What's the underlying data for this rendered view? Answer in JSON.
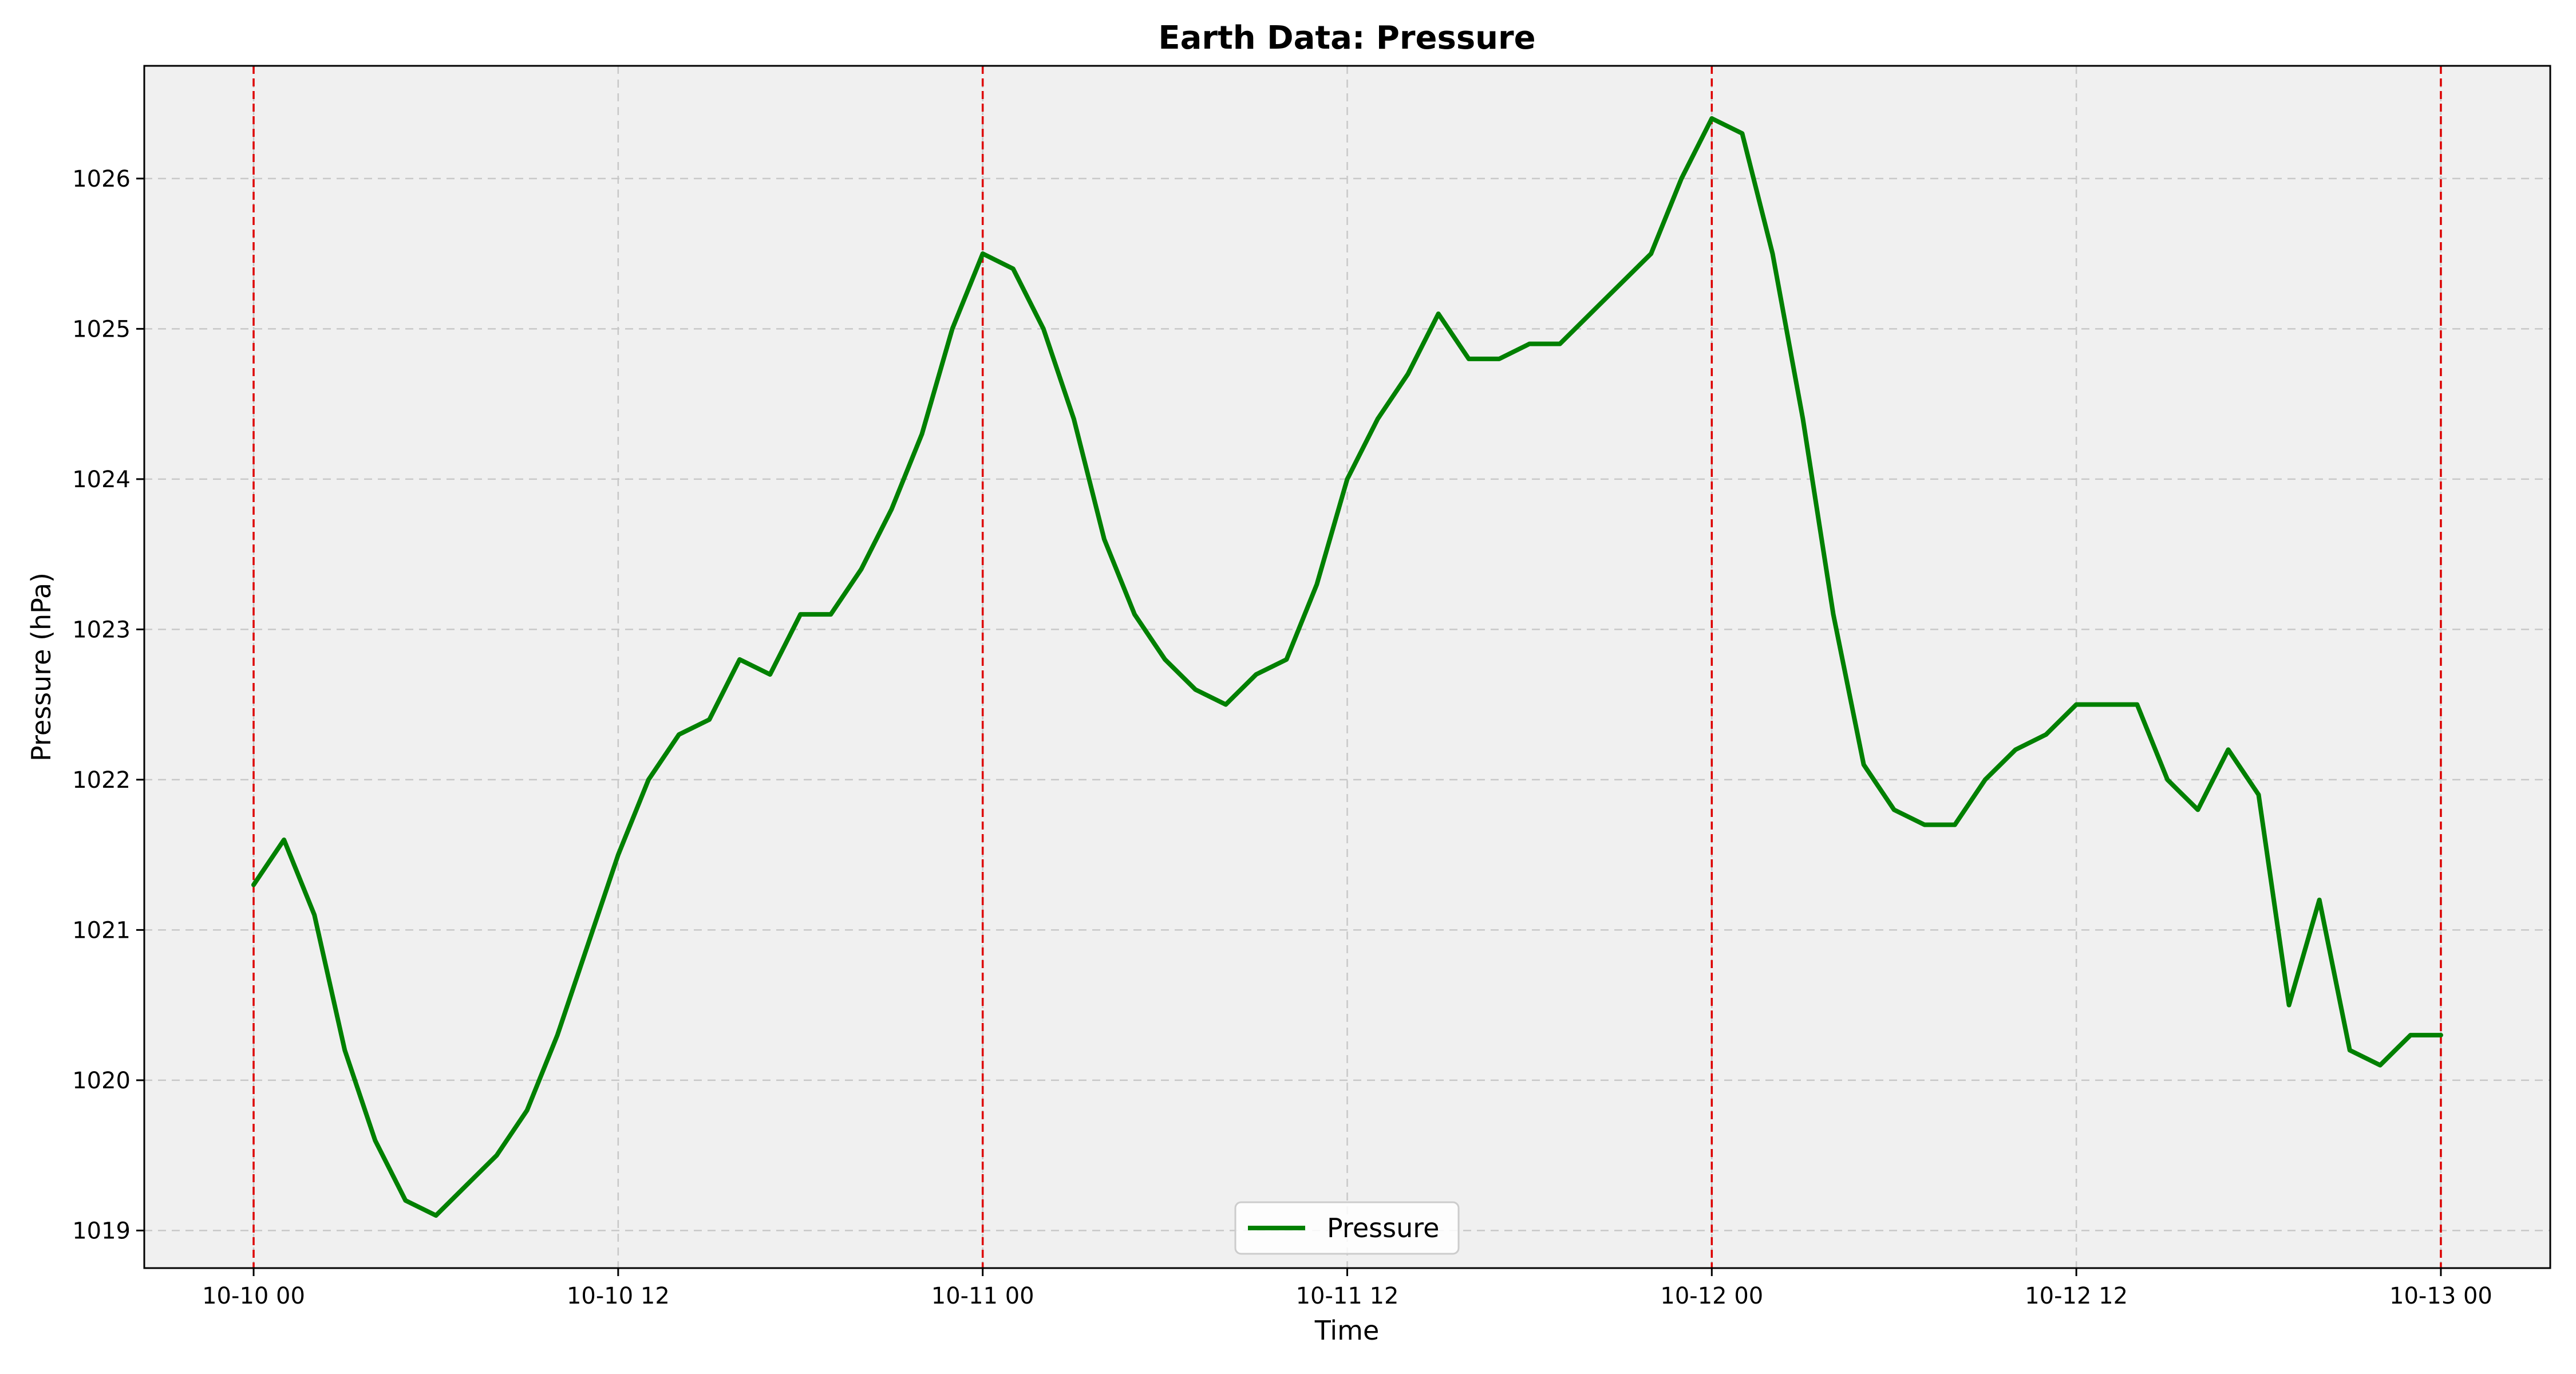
{
  "chart_data": {
    "type": "line",
    "title": "Earth Data: Pressure",
    "xlabel": "Time",
    "ylabel": "Pressure (hPa)",
    "x_unit": "hours",
    "x_ticks": [
      {
        "value": 0,
        "label": "10-10 00"
      },
      {
        "value": 12,
        "label": "10-10 12"
      },
      {
        "value": 24,
        "label": "10-11 00"
      },
      {
        "value": 36,
        "label": "10-11 12"
      },
      {
        "value": 48,
        "label": "10-12 00"
      },
      {
        "value": 60,
        "label": "10-12 12"
      },
      {
        "value": 72,
        "label": "10-13 00"
      }
    ],
    "y_ticks": [
      1019,
      1020,
      1021,
      1022,
      1023,
      1024,
      1025,
      1026
    ],
    "xlim": [
      -3.6,
      75.6
    ],
    "ylim": [
      1018.75,
      1026.75
    ],
    "grid": true,
    "vertical_markers": [
      0,
      24,
      48,
      72
    ],
    "legend_position": "bottom-center",
    "series": [
      {
        "name": "Pressure",
        "x": [
          0,
          1,
          2,
          3,
          4,
          5,
          6,
          7,
          8,
          9,
          10,
          11,
          12,
          13,
          14,
          15,
          16,
          17,
          18,
          19,
          20,
          21,
          22,
          23,
          24,
          25,
          26,
          27,
          28,
          29,
          30,
          31,
          32,
          33,
          34,
          35,
          36,
          37,
          38,
          39,
          40,
          41,
          42,
          43,
          44,
          45,
          46,
          47,
          48,
          49,
          50,
          51,
          52,
          53,
          54,
          55,
          56,
          57,
          58,
          59,
          60,
          61,
          62,
          63,
          64,
          65,
          66,
          67,
          68,
          69,
          70,
          71,
          72
        ],
        "values": [
          1021.3,
          1021.6,
          1021.1,
          1020.2,
          1019.6,
          1019.2,
          1019.1,
          1019.3,
          1019.5,
          1019.8,
          1020.3,
          1020.9,
          1021.5,
          1022.0,
          1022.3,
          1022.4,
          1022.8,
          1022.7,
          1023.1,
          1023.1,
          1023.4,
          1023.8,
          1024.3,
          1025.0,
          1025.5,
          1025.4,
          1025.0,
          1024.4,
          1023.6,
          1023.1,
          1022.8,
          1022.6,
          1022.5,
          1022.7,
          1022.8,
          1023.3,
          1024.0,
          1024.4,
          1024.7,
          1025.1,
          1024.8,
          1024.8,
          1024.9,
          1024.9,
          1025.1,
          1025.3,
          1025.5,
          1026.0,
          1026.4,
          1026.3,
          1025.5,
          1024.4,
          1023.1,
          1022.1,
          1021.8,
          1021.7,
          1021.7,
          1022.0,
          1022.2,
          1022.3,
          1022.5,
          1022.5,
          1022.5,
          1022.0,
          1021.8,
          1022.2,
          1021.9,
          1020.5,
          1021.2,
          1020.2,
          1020.1,
          1020.3,
          1020.3
        ]
      }
    ]
  },
  "colors": {
    "line": "#008000",
    "marker_line": "#dd0000",
    "plot_background": "#f0f0f0",
    "grid": "#c8c8c8"
  }
}
